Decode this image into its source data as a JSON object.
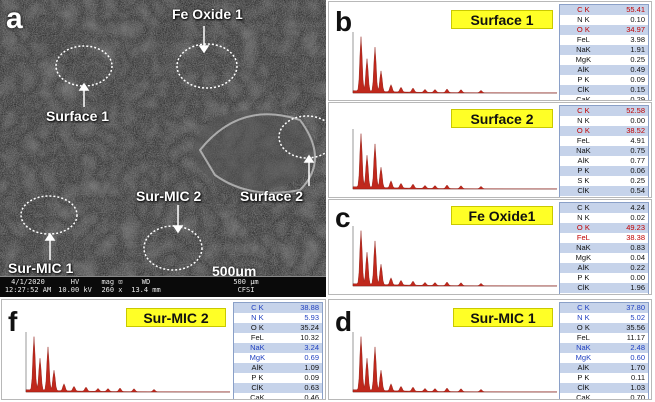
{
  "sem": {
    "panel_letter": "a",
    "labels": {
      "fe_oxide_1": "Fe Oxide 1",
      "surface_1": "Surface 1",
      "surface_2": "Surface 2",
      "sur_mic_2": "Sur-MIC 2",
      "sur_mic_1": "Sur-MIC 1"
    },
    "scale_label": "500μm",
    "info": {
      "date": "4/1/2020",
      "time": "12:27:52 AM",
      "hv_label": "HV",
      "hv": "10.00 kV",
      "mag_label": "mag ⊡",
      "mag": "260 x",
      "wd_label": "WD",
      "wd": "13.4 mm",
      "scale_small": "500 μm",
      "facility": "CFSI"
    }
  },
  "panels": [
    {
      "id": "b",
      "letter": "b",
      "title": "Surface 1",
      "rows": [
        {
          "el": "C K",
          "val": "55.41",
          "style": "hl"
        },
        {
          "el": "N K",
          "val": "0.10",
          "style": ""
        },
        {
          "el": "O K",
          "val": "34.97",
          "style": "hl"
        },
        {
          "el": "FeL",
          "val": "3.98",
          "style": ""
        },
        {
          "el": "NaK",
          "val": "1.91",
          "style": ""
        },
        {
          "el": "MgK",
          "val": "0.25",
          "style": ""
        },
        {
          "el": "AlK",
          "val": "0.49",
          "style": ""
        },
        {
          "el": "P K",
          "val": "0.09",
          "style": ""
        },
        {
          "el": "ClK",
          "val": "0.15",
          "style": ""
        },
        {
          "el": "CaK",
          "val": "0.29",
          "style": ""
        }
      ]
    },
    {
      "id": "b2",
      "letter": "",
      "title": "Surface 2",
      "rows": [
        {
          "el": "C K",
          "val": "52.58",
          "style": "hl"
        },
        {
          "el": "N K",
          "val": "0.00",
          "style": ""
        },
        {
          "el": "O K",
          "val": "38.52",
          "style": "hl"
        },
        {
          "el": "FeL",
          "val": "4.91",
          "style": ""
        },
        {
          "el": "NaK",
          "val": "0.75",
          "style": ""
        },
        {
          "el": "AlK",
          "val": "0.77",
          "style": ""
        },
        {
          "el": "P K",
          "val": "0.06",
          "style": ""
        },
        {
          "el": "S K",
          "val": "0.25",
          "style": ""
        },
        {
          "el": "ClK",
          "val": "0.54",
          "style": ""
        },
        {
          "el": "CaK",
          "val": "0.22",
          "style": ""
        }
      ]
    },
    {
      "id": "c",
      "letter": "c",
      "title": "Fe Oxide1",
      "rows": [
        {
          "el": "C K",
          "val": "4.24",
          "style": ""
        },
        {
          "el": "N K",
          "val": "0.02",
          "style": ""
        },
        {
          "el": "O K",
          "val": "49.23",
          "style": "hl"
        },
        {
          "el": "FeL",
          "val": "38.38",
          "style": "hl"
        },
        {
          "el": "NaK",
          "val": "0.83",
          "style": ""
        },
        {
          "el": "MgK",
          "val": "0.04",
          "style": ""
        },
        {
          "el": "AlK",
          "val": "0.22",
          "style": ""
        },
        {
          "el": "P K",
          "val": "0.00",
          "style": ""
        },
        {
          "el": "ClK",
          "val": "1.96",
          "style": ""
        },
        {
          "el": "CaK",
          "val": "0.51",
          "style": ""
        }
      ]
    },
    {
      "id": "f",
      "letter": "f",
      "title": "Sur-MIC 2",
      "rows": [
        {
          "el": "C K",
          "val": "38.88",
          "style": "hl2"
        },
        {
          "el": "N K",
          "val": "5.93",
          "style": "hl2"
        },
        {
          "el": "O K",
          "val": "35.24",
          "style": ""
        },
        {
          "el": "FeL",
          "val": "10.32",
          "style": ""
        },
        {
          "el": "NaK",
          "val": "3.24",
          "style": "hl2"
        },
        {
          "el": "MgK",
          "val": "0.69",
          "style": "hl2"
        },
        {
          "el": "AlK",
          "val": "1.09",
          "style": ""
        },
        {
          "el": "P K",
          "val": "0.09",
          "style": ""
        },
        {
          "el": "ClK",
          "val": "0.63",
          "style": ""
        },
        {
          "el": "CaK",
          "val": "0.46",
          "style": ""
        }
      ]
    },
    {
      "id": "d",
      "letter": "d",
      "title": "Sur-MIC 1",
      "rows": [
        {
          "el": "C K",
          "val": "37.80",
          "style": "hl2"
        },
        {
          "el": "N K",
          "val": "5.02",
          "style": "hl2"
        },
        {
          "el": "O K",
          "val": "35.56",
          "style": ""
        },
        {
          "el": "FeL",
          "val": "11.17",
          "style": ""
        },
        {
          "el": "NaK",
          "val": "2.48",
          "style": "hl2"
        },
        {
          "el": "MgK",
          "val": "0.60",
          "style": "hl2"
        },
        {
          "el": "AlK",
          "val": "1.70",
          "style": ""
        },
        {
          "el": "P K",
          "val": "0.11",
          "style": ""
        },
        {
          "el": "ClK",
          "val": "1.03",
          "style": ""
        },
        {
          "el": "CaK",
          "val": "0.70",
          "style": ""
        }
      ]
    }
  ],
  "colors": {
    "title_bg": "#ffff26",
    "spectrum": "#c0281c",
    "highlight_red": "#c00000",
    "highlight_blue": "#2040c0"
  }
}
